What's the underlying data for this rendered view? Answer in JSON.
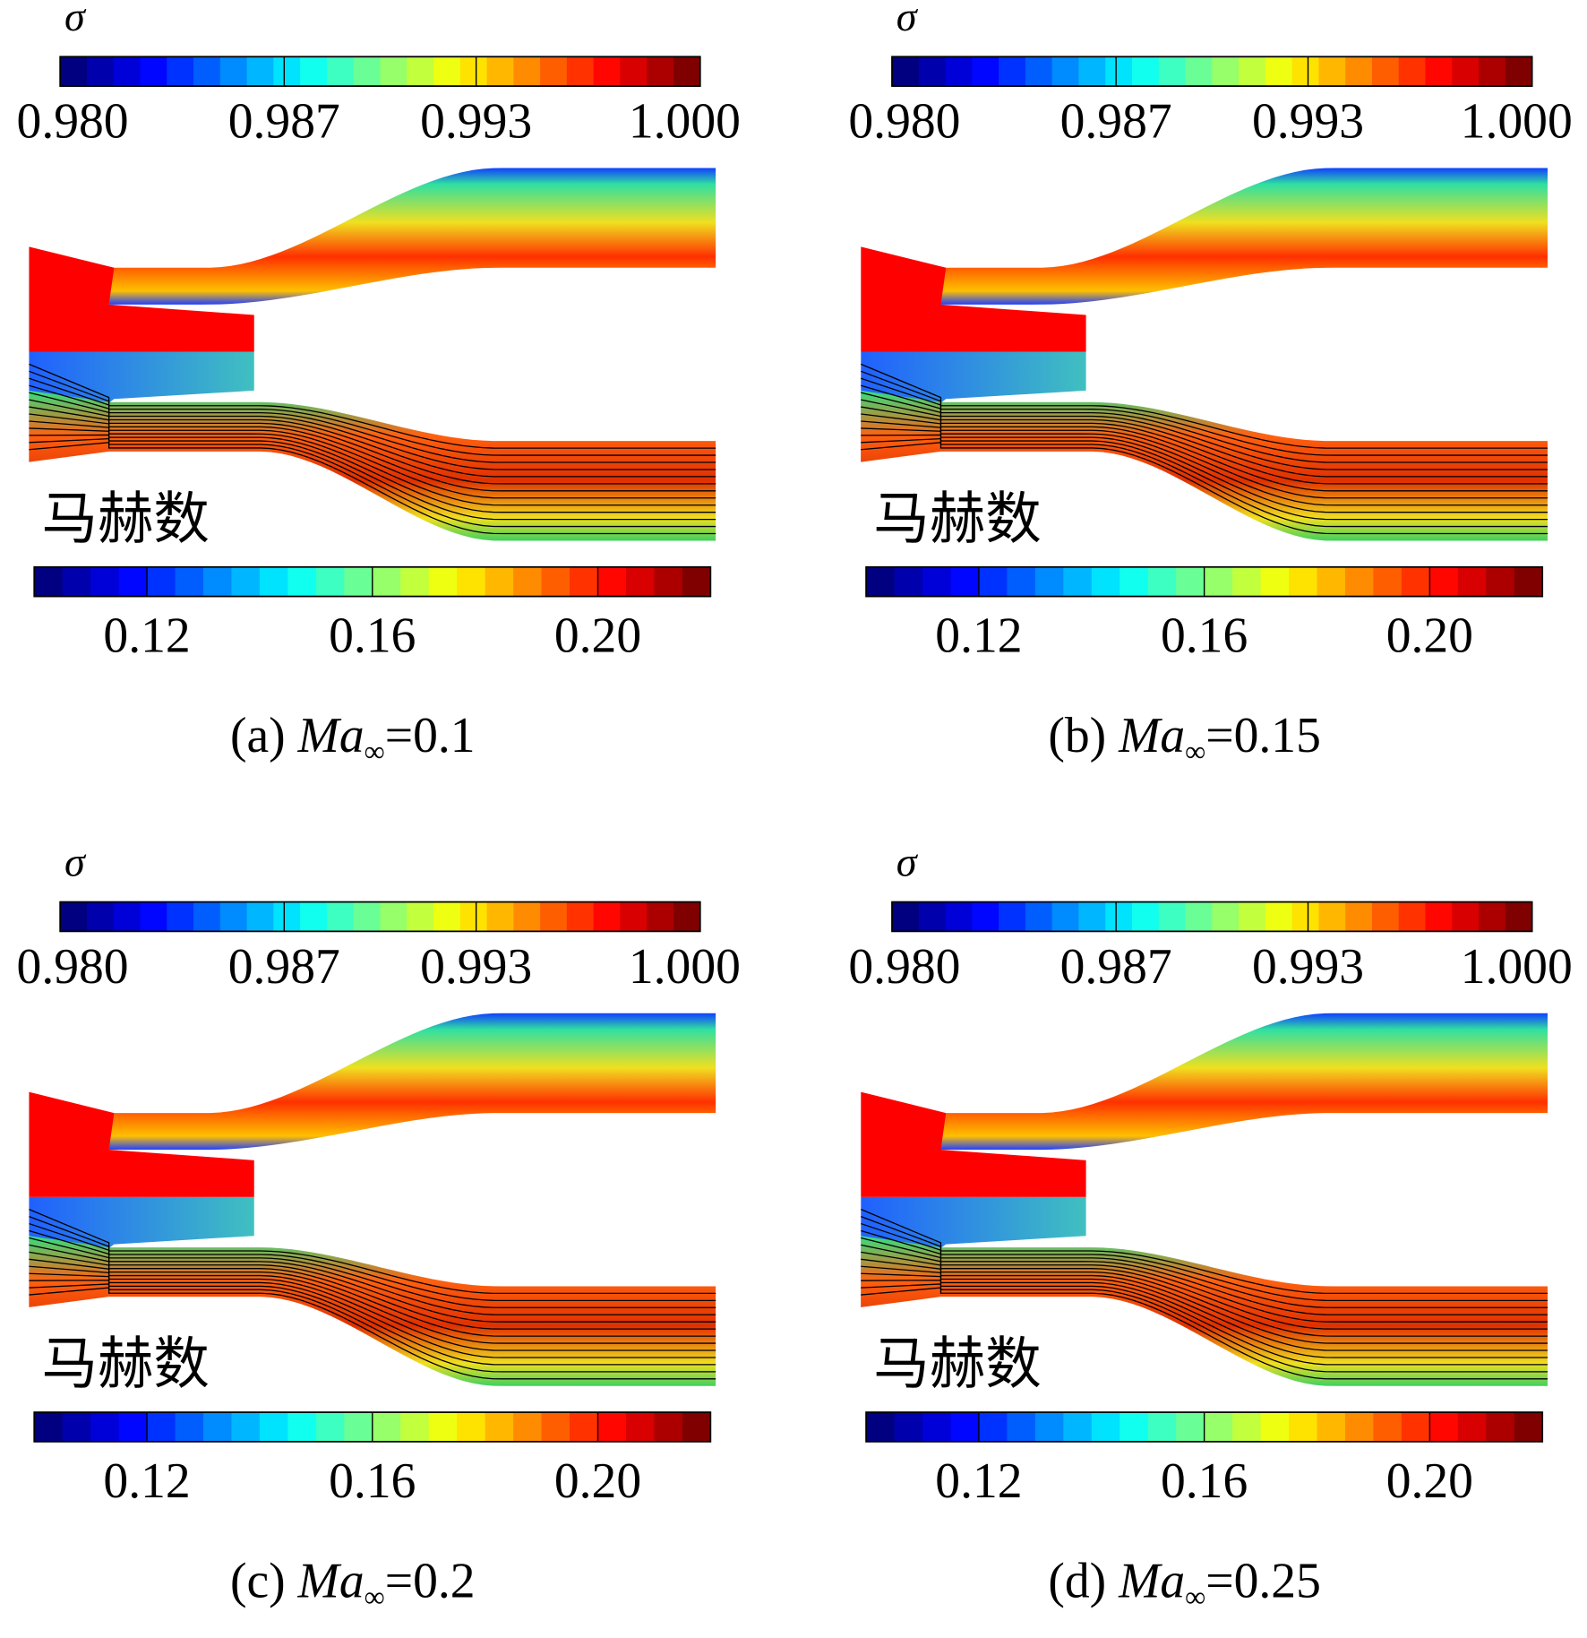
{
  "panels": [
    {
      "sigma_label": "σ",
      "sigma_range": [
        0.98,
        1.0
      ],
      "sigma_ticks": [
        {
          "value": 0.98,
          "label": "0.980"
        },
        {
          "value": 0.987,
          "label": "0.987"
        },
        {
          "value": 0.993,
          "label": "0.993"
        },
        {
          "value": 1.0,
          "label": "1.000"
        }
      ],
      "mach_label": "马赫数",
      "mach_range": [
        0.1,
        0.22
      ],
      "mach_ticks": [
        0.12,
        0.16,
        {
          "value": 0.2,
          "label": "0.20"
        }
      ],
      "caption": {
        "label": "(a)",
        "symbol": "Ma",
        "subscript": "∞",
        "value_text": "=0.1"
      }
    },
    {
      "sigma_label": "σ",
      "sigma_range": [
        0.98,
        1.0
      ],
      "sigma_ticks": [
        {
          "value": 0.98,
          "label": "0.980"
        },
        {
          "value": 0.987,
          "label": "0.987"
        },
        {
          "value": 0.993,
          "label": "0.993"
        },
        {
          "value": 1.0,
          "label": "1.000"
        }
      ],
      "mach_label": "马赫数",
      "mach_range": [
        0.1,
        0.22
      ],
      "mach_ticks": [
        0.12,
        0.16,
        {
          "value": 0.2,
          "label": "0.20"
        }
      ],
      "caption": {
        "label": "(b)",
        "symbol": "Ma",
        "subscript": "∞",
        "value_text": "=0.15"
      }
    },
    {
      "sigma_label": "σ",
      "sigma_range": [
        0.98,
        1.0
      ],
      "sigma_ticks": [
        {
          "value": 0.98,
          "label": "0.980"
        },
        {
          "value": 0.987,
          "label": "0.987"
        },
        {
          "value": 0.993,
          "label": "0.993"
        },
        {
          "value": 1.0,
          "label": "1.000"
        }
      ],
      "mach_label": "马赫数",
      "mach_range": [
        0.1,
        0.22
      ],
      "mach_ticks": [
        0.12,
        0.16,
        {
          "value": 0.2,
          "label": "0.20"
        }
      ],
      "caption": {
        "label": "(c)",
        "symbol": "Ma",
        "subscript": "∞",
        "value_text": "=0.2"
      }
    },
    {
      "sigma_label": "σ",
      "sigma_range": [
        0.98,
        1.0
      ],
      "sigma_ticks": [
        {
          "value": 0.98,
          "label": "0.980"
        },
        {
          "value": 0.987,
          "label": "0.987"
        },
        {
          "value": 0.993,
          "label": "0.993"
        },
        {
          "value": 1.0,
          "label": "1.000"
        }
      ],
      "mach_label": "马赫数",
      "mach_range": [
        0.1,
        0.22
      ],
      "mach_ticks": [
        0.12,
        0.16,
        {
          "value": 0.2,
          "label": "0.20"
        }
      ],
      "caption": {
        "label": "(d)",
        "symbol": "Ma",
        "subscript": "∞",
        "value_text": "=0.25"
      }
    }
  ]
}
